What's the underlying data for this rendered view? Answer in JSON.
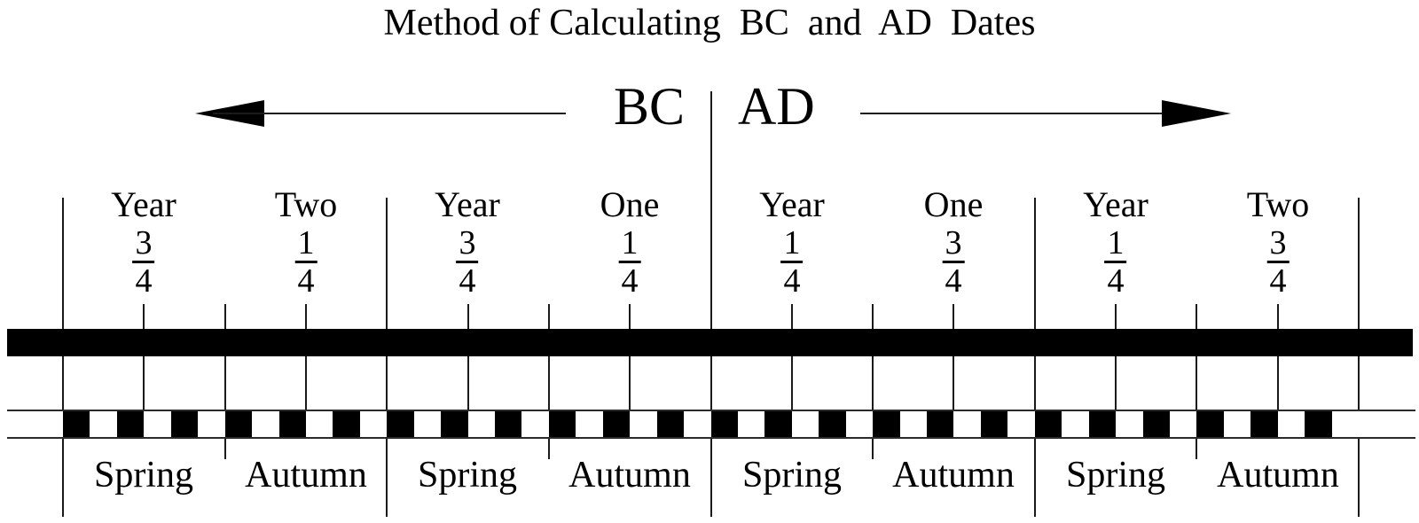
{
  "title": "Method of Calculating  BC  and  AD  Dates",
  "era": {
    "bc": "BC",
    "ad": "AD"
  },
  "sections": [
    {
      "word": "Year",
      "fraction": {
        "num": "3",
        "den": "4"
      },
      "season": "Spring"
    },
    {
      "word": "Two",
      "fraction": {
        "num": "1",
        "den": "4"
      },
      "season": "Autumn"
    },
    {
      "word": "Year",
      "fraction": {
        "num": "3",
        "den": "4"
      },
      "season": "Spring"
    },
    {
      "word": "One",
      "fraction": {
        "num": "1",
        "den": "4"
      },
      "season": "Autumn"
    },
    {
      "word": "Year",
      "fraction": {
        "num": "1",
        "den": "4"
      },
      "season": "Spring"
    },
    {
      "word": "One",
      "fraction": {
        "num": "3",
        "den": "4"
      },
      "season": "Autumn"
    },
    {
      "word": "Year",
      "fraction": {
        "num": "1",
        "den": "4"
      },
      "season": "Spring"
    },
    {
      "word": "Two",
      "fraction": {
        "num": "3",
        "den": "4"
      },
      "season": "Autumn"
    }
  ],
  "timeline": {
    "years": 4,
    "quarters_per_year": 4,
    "months_per_year": 12
  },
  "colors": {
    "ink": "#000000",
    "background": "#ffffff"
  }
}
